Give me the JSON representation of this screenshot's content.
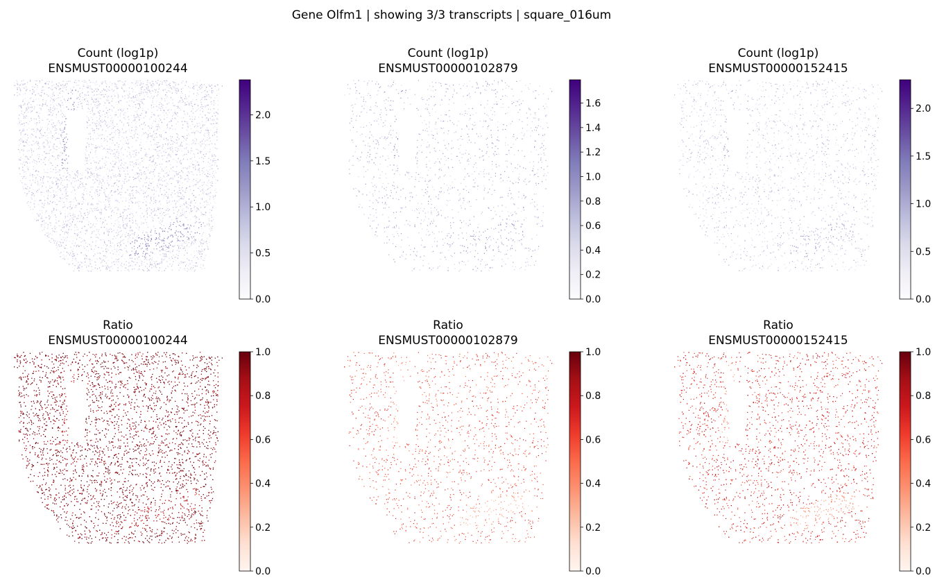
{
  "figure": {
    "suptitle": "Gene Olfm1 | showing 3/3 transcripts | square_016um"
  },
  "colors": {
    "purples": [
      "#fcfbfd",
      "#efedf5",
      "#dadaeb",
      "#bcbddc",
      "#9e9ac8",
      "#807dba",
      "#6a51a3",
      "#54278f",
      "#3f007d"
    ],
    "reds": [
      "#fff5f0",
      "#fee0d2",
      "#fcbba1",
      "#fc9272",
      "#fb6a4a",
      "#ef3b2c",
      "#cb181d",
      "#a50f15",
      "#67000d"
    ]
  },
  "chart_data": [
    {
      "type": "scatter",
      "title_line1": "Count (log1p)",
      "title_line2": "ENSMUST00000100244",
      "colormap": "purples",
      "clim": [
        0,
        2.38
      ],
      "colorbar_ticks": [
        "0.0",
        "0.5",
        "1.0",
        "1.5",
        "2.0"
      ],
      "colorbar_tick_values": [
        0,
        0.5,
        1.0,
        1.5,
        2.0
      ],
      "density": "high",
      "typical_value": 0.7,
      "highlight_region_value": 1.3
    },
    {
      "type": "scatter",
      "title_line1": "Count (log1p)",
      "title_line2": "ENSMUST00000102879",
      "colormap": "purples",
      "clim": [
        0,
        1.79
      ],
      "colorbar_ticks": [
        "0.0",
        "0.2",
        "0.4",
        "0.6",
        "0.8",
        "1.0",
        "1.2",
        "1.4",
        "1.6"
      ],
      "colorbar_tick_values": [
        0,
        0.2,
        0.4,
        0.6,
        0.8,
        1.0,
        1.2,
        1.4,
        1.6
      ],
      "density": "low",
      "typical_value": 0.7,
      "highlight_region_value": 0.9
    },
    {
      "type": "scatter",
      "title_line1": "Count (log1p)",
      "title_line2": "ENSMUST00000152415",
      "colormap": "purples",
      "clim": [
        0,
        2.3
      ],
      "colorbar_ticks": [
        "0.0",
        "0.5",
        "1.0",
        "1.5",
        "2.0"
      ],
      "colorbar_tick_values": [
        0,
        0.5,
        1.0,
        1.5,
        2.0
      ],
      "density": "medium",
      "typical_value": 0.7,
      "highlight_region_value": 1.0
    },
    {
      "type": "scatter",
      "title_line1": "Ratio",
      "title_line2": "ENSMUST00000100244",
      "colormap": "reds",
      "clim": [
        0,
        1.0
      ],
      "colorbar_ticks": [
        "0.0",
        "0.2",
        "0.4",
        "0.6",
        "0.8",
        "1.0"
      ],
      "colorbar_tick_values": [
        0,
        0.2,
        0.4,
        0.6,
        0.8,
        1.0
      ],
      "density": "high",
      "typical_value": 0.95,
      "highlight_region_value": 0.8
    },
    {
      "type": "scatter",
      "title_line1": "Ratio",
      "title_line2": "ENSMUST00000102879",
      "colormap": "reds",
      "clim": [
        0,
        1.0
      ],
      "colorbar_ticks": [
        "0.0",
        "0.2",
        "0.4",
        "0.6",
        "0.8",
        "1.0"
      ],
      "colorbar_tick_values": [
        0,
        0.2,
        0.4,
        0.6,
        0.8,
        1.0
      ],
      "density": "low",
      "typical_value": 0.6,
      "highlight_region_value": 0.35
    },
    {
      "type": "scatter",
      "title_line1": "Ratio",
      "title_line2": "ENSMUST00000152415",
      "colormap": "reds",
      "clim": [
        0,
        1.0
      ],
      "colorbar_ticks": [
        "0.0",
        "0.2",
        "0.4",
        "0.6",
        "0.8",
        "1.0"
      ],
      "colorbar_tick_values": [
        0,
        0.2,
        0.4,
        0.6,
        0.8,
        1.0
      ],
      "density": "medium",
      "typical_value": 0.7,
      "highlight_region_value": 0.4
    }
  ]
}
